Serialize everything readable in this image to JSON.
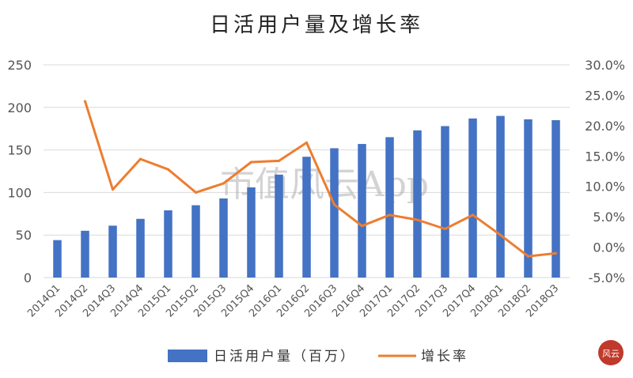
{
  "chart_data": {
    "type": "bar",
    "title": "日活用户量及增长率",
    "categories": [
      "2014Q1",
      "2014Q2",
      "2014Q3",
      "2014Q4",
      "2015Q1",
      "2015Q2",
      "2015Q3",
      "2015Q4",
      "2016Q1",
      "2016Q2",
      "2016Q3",
      "2016Q4",
      "2017Q1",
      "2017Q2",
      "2017Q3",
      "2017Q4",
      "2018Q1",
      "2018Q2",
      "2018Q3"
    ],
    "y_left": {
      "ylim": [
        0,
        250
      ],
      "ticks": [
        "0",
        "50",
        "100",
        "150",
        "200",
        "250"
      ]
    },
    "y_right": {
      "ylim": [
        -5,
        30
      ],
      "ticks": [
        "-5.0%",
        "0.0%",
        "5.0%",
        "10.0%",
        "15.0%",
        "20.0%",
        "25.0%",
        "30.0%"
      ]
    },
    "grid": true,
    "legend_position": "bottom",
    "series": [
      {
        "name": "日活用户量（百万）",
        "type": "bar",
        "axis": "left",
        "color": "#4472c4",
        "values": [
          44,
          55,
          61,
          69,
          79,
          85,
          93,
          106,
          121,
          142,
          152,
          157,
          165,
          173,
          178,
          187,
          190,
          186,
          185
        ]
      },
      {
        "name": "增长率",
        "type": "line",
        "axis": "right",
        "color": "#ed7d31",
        "values": [
          null,
          24.0,
          9.5,
          14.5,
          12.8,
          9.0,
          10.5,
          14.0,
          14.2,
          17.2,
          7.0,
          3.5,
          5.3,
          4.5,
          3.0,
          5.3,
          2.0,
          -1.5,
          -1.0
        ]
      }
    ]
  },
  "watermark": {
    "text": "市值风云App"
  },
  "seal": {
    "text": "风云"
  }
}
